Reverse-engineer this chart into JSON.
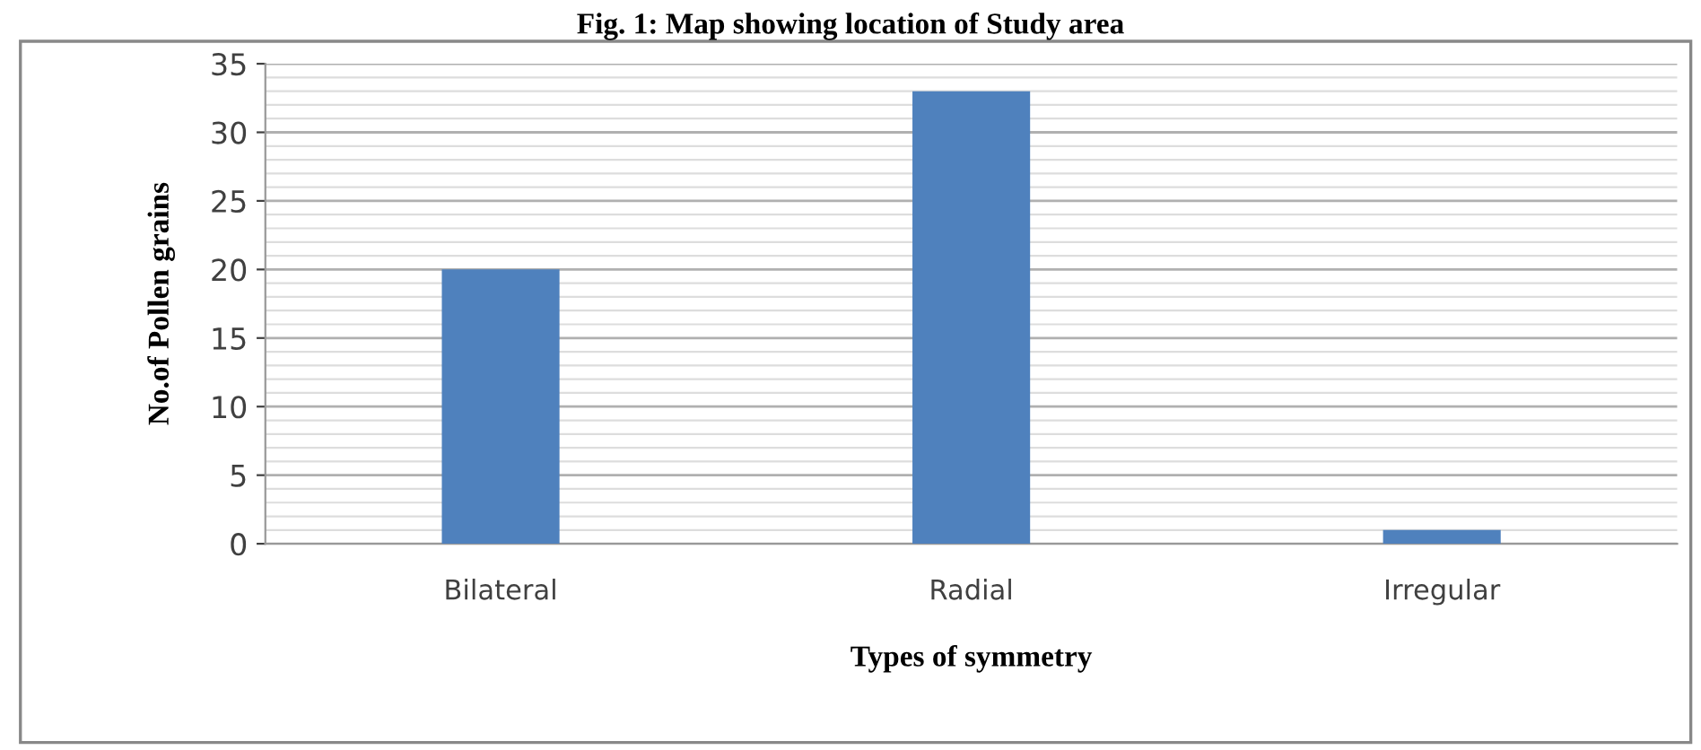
{
  "chart_data": {
    "type": "bar",
    "title": "Fig. 1: Map showing location of Study area",
    "categories": [
      "Bilateral",
      "Radial",
      "Irregular"
    ],
    "values": [
      20,
      33,
      1
    ],
    "color": "#4f81bd",
    "xlabel": "Types of symmetry",
    "ylabel": "No.of Pollen grains",
    "ylim": [
      0,
      35
    ],
    "yticks": [
      0,
      5,
      10,
      15,
      20,
      25,
      30,
      35
    ],
    "grid": "y"
  }
}
